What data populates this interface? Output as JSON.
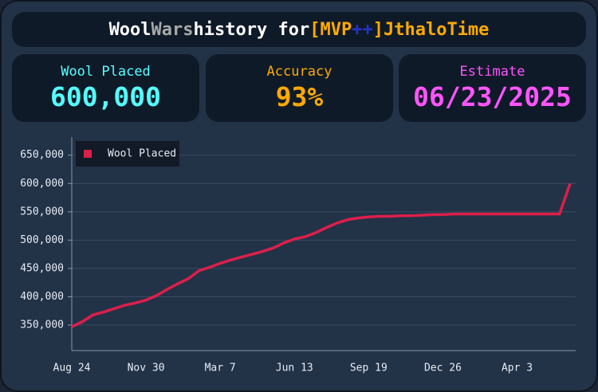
{
  "header": {
    "parts": [
      {
        "text": "Wool",
        "color": "#ffffff"
      },
      {
        "text": "Wars",
        "color": "#aaaaaa"
      },
      {
        "text": "history for",
        "color": "#ffffff"
      },
      {
        "text": "[MVP",
        "color": "#ffaa00"
      },
      {
        "text": "++",
        "color": "#2233cc"
      },
      {
        "text": "]",
        "color": "#ffaa00"
      },
      {
        "text": "JthaloTime",
        "color": "#ffaa00"
      }
    ]
  },
  "stats": [
    {
      "label": "Wool Placed",
      "value": "600,000",
      "color": "#55ffff"
    },
    {
      "label": "Accuracy",
      "value": "93%",
      "color": "#ffaa00"
    },
    {
      "label": "Estimate",
      "value": "06/23/2025",
      "color": "#ff55ff"
    }
  ],
  "chart_data": {
    "type": "line",
    "categories": [
      "Aug 24",
      null,
      null,
      null,
      null,
      null,
      null,
      "Nov 30",
      null,
      null,
      null,
      null,
      null,
      null,
      "Mar  7",
      null,
      null,
      null,
      null,
      null,
      null,
      "Jun 13",
      null,
      null,
      null,
      null,
      null,
      null,
      "Sep 19",
      null,
      null,
      null,
      null,
      null,
      null,
      "Dec 26",
      null,
      null,
      null,
      null,
      null,
      null,
      "Apr  3",
      null,
      null,
      null,
      null,
      null
    ],
    "series": [
      {
        "name": "Wool Placed",
        "color": "#dc1f4b",
        "values": [
          347000,
          356000,
          368000,
          373000,
          379000,
          385000,
          389000,
          394000,
          402000,
          413000,
          423000,
          432000,
          446000,
          452000,
          459000,
          465000,
          470000,
          475000,
          480000,
          486000,
          495000,
          502000,
          506000,
          513000,
          522000,
          530000,
          536000,
          539000,
          541000,
          542000,
          542000,
          543000,
          543000,
          544000,
          545000,
          545000,
          546000,
          546000,
          546000,
          546000,
          546000,
          546000,
          546000,
          546000,
          546000,
          546000,
          546000,
          600000
        ]
      }
    ],
    "ylim": [
      305000,
      682000
    ],
    "yticks": [
      {
        "value": 350000,
        "label": "350,000"
      },
      {
        "value": 400000,
        "label": "400,000"
      },
      {
        "value": 450000,
        "label": "450,000"
      },
      {
        "value": 500000,
        "label": "500,000"
      },
      {
        "value": 550000,
        "label": "550,000"
      },
      {
        "value": 600000,
        "label": "600,000"
      },
      {
        "value": 650000,
        "label": "650,000"
      }
    ],
    "grid": true,
    "legend": "top-left"
  }
}
